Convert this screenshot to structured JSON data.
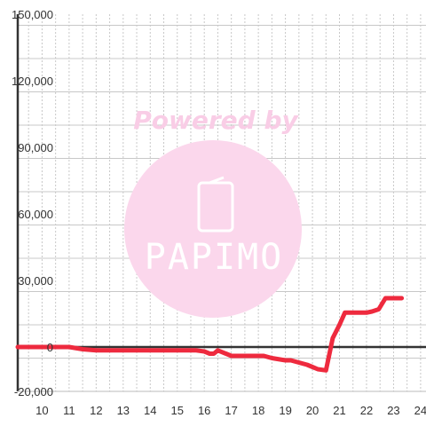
{
  "chart_data": {
    "type": "line",
    "title": "",
    "xlabel": "",
    "ylabel": "",
    "xlim": [
      9.1,
      24.2
    ],
    "ylim": [
      -20000,
      150000
    ],
    "x_ticks": [
      10,
      11,
      12,
      13,
      14,
      15,
      16,
      17,
      18,
      19,
      20,
      21,
      22,
      23,
      24
    ],
    "y_ticks": [
      150000,
      120000,
      90000,
      60000,
      30000,
      0,
      -20000
    ],
    "x_tick_labels": [
      "10",
      "11",
      "12",
      "13",
      "14",
      "15",
      "16",
      "17",
      "18",
      "19",
      "20",
      "21",
      "22",
      "23",
      "24"
    ],
    "y_tick_labels": [
      "150,000",
      "120,000",
      "90,000",
      "60,000",
      "30,000",
      "0",
      "-20,000"
    ],
    "grid": true,
    "legend": "none",
    "series": [
      {
        "color": "#ee2a3e",
        "x": [
          9.1,
          10.0,
          11.0,
          11.5,
          12.0,
          13.0,
          14.0,
          15.0,
          15.7,
          16.0,
          16.2,
          16.35,
          16.5,
          16.8,
          17.0,
          17.5,
          18.0,
          18.2,
          18.5,
          19.0,
          19.2,
          19.5,
          19.8,
          20.0,
          20.2,
          20.5,
          20.75,
          21.0,
          21.2,
          21.6,
          22.0,
          22.2,
          22.45,
          22.7,
          23.0,
          23.3
        ],
        "y": [
          0,
          0,
          0,
          -1000,
          -1500,
          -1500,
          -1500,
          -1500,
          -1500,
          -2000,
          -3000,
          -3000,
          -1500,
          -3000,
          -4000,
          -4000,
          -4000,
          -4000,
          -5000,
          -6000,
          -6000,
          -7000,
          -8000,
          -9000,
          -10000,
          -10500,
          4000,
          10000,
          15500,
          15500,
          15500,
          16000,
          17000,
          22000,
          22000,
          22000
        ]
      }
    ]
  },
  "watermark": {
    "text": "Powered by",
    "logo": "PAPIMO",
    "circle_color": "#fbd7ec",
    "text_color": "#f9cde6"
  },
  "colors": {
    "background": "#ffffff",
    "grid": "#c8c8c8",
    "axis": "#333333",
    "zero_line": "#333333",
    "line": "#ee2a3e"
  }
}
